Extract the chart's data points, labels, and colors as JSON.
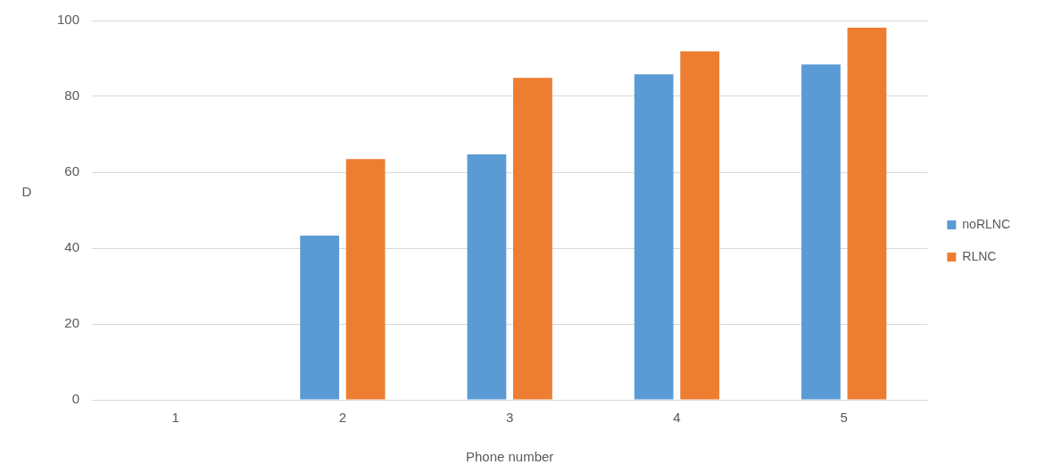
{
  "chart_data": {
    "type": "bar",
    "xlabel": "Phone number",
    "ylabel": "D",
    "categories": [
      "1",
      "2",
      "3",
      "4",
      "5"
    ],
    "series": [
      {
        "name": "noRLNC",
        "color": "#5b9bd5",
        "values": [
          0,
          43.3,
          64.7,
          85.8,
          88.4
        ]
      },
      {
        "name": "RLNC",
        "color": "#ed7d31",
        "values": [
          0,
          63.5,
          84.9,
          91.9,
          98.1
        ]
      }
    ],
    "ylim": [
      0,
      100
    ],
    "yticks": [
      0,
      20,
      40,
      60,
      80,
      100
    ],
    "grid": "y",
    "legend": "right"
  }
}
